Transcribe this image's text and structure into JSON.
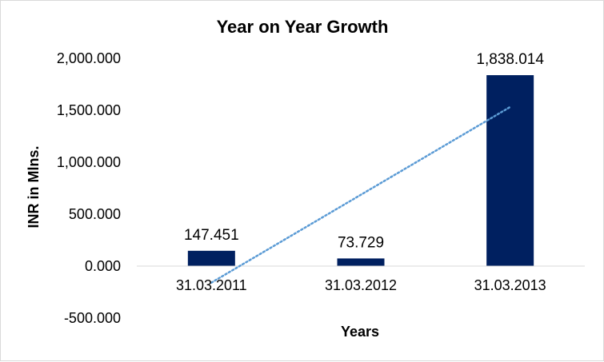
{
  "chart_data": {
    "type": "bar",
    "title": "Year on Year Growth",
    "xlabel": "Years",
    "ylabel": "INR in Mlns.",
    "categories": [
      "31.03.2011",
      "31.03.2012",
      "31.03.2013"
    ],
    "values": [
      147.451,
      73.729,
      1838.014
    ],
    "data_labels": [
      "147.451",
      "73.729",
      "1,838.014"
    ],
    "ylim": [
      -500,
      2000
    ],
    "y_ticks": [
      -500,
      0,
      500,
      1000,
      1500,
      2000
    ],
    "y_tick_labels": [
      "-500.000",
      "0.000",
      "500.000",
      "1,000.000",
      "1,500.000",
      "2,000.000"
    ],
    "grid": false,
    "legend": "none",
    "trendline": {
      "type": "linear",
      "style": "dotted"
    },
    "colors": {
      "bar": "#002060",
      "trendline": "#5B9BD5",
      "axis": "#d9d9d9"
    }
  }
}
